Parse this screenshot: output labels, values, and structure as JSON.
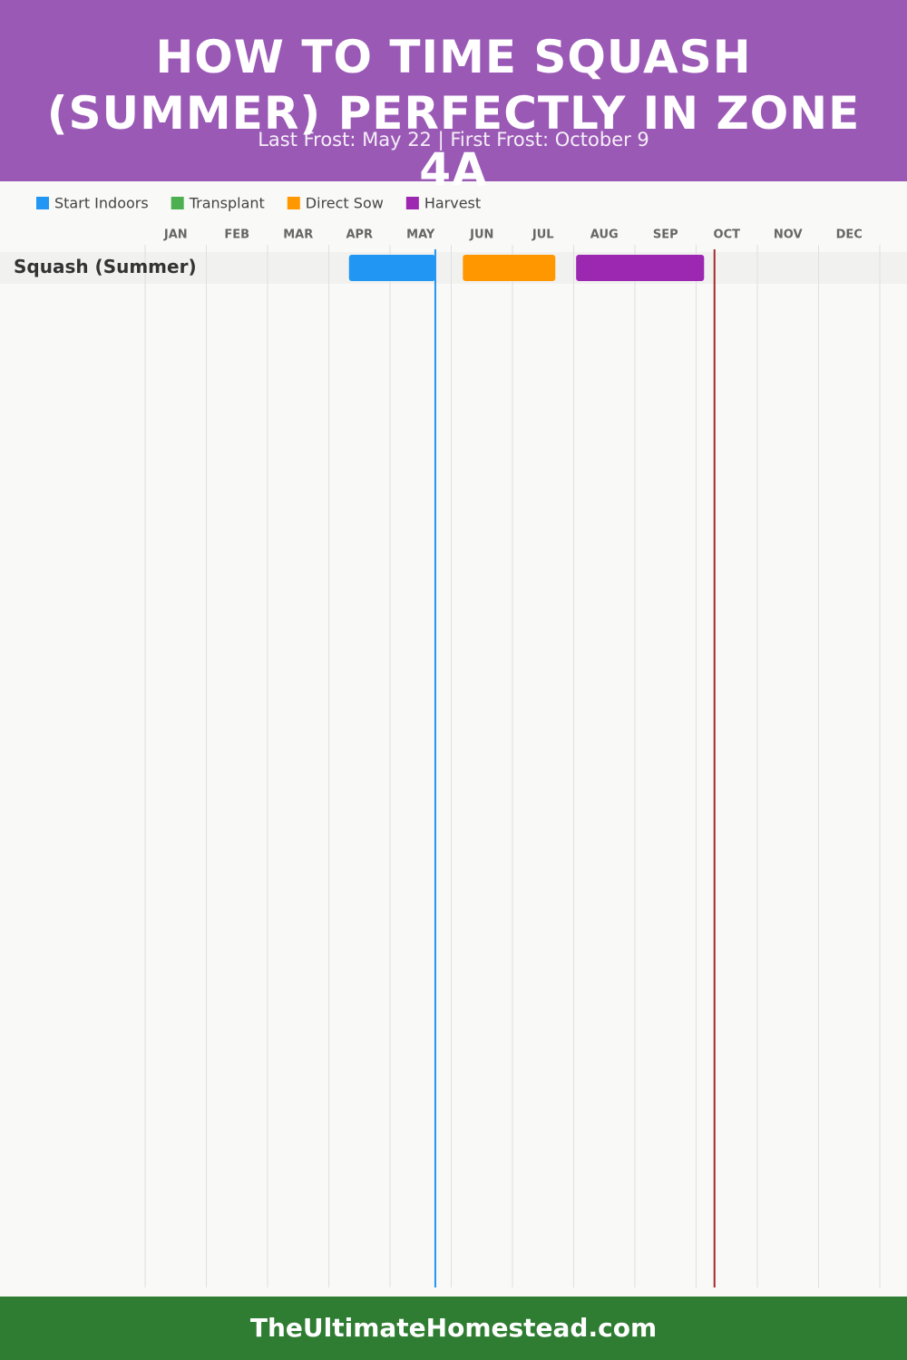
{
  "chart_data": {
    "type": "gantt",
    "title": "HOW TO TIME SQUASH (SUMMER) PERFECTLY IN ZONE 4A",
    "subtitle": "Last Frost: May 22 | First Frost: October 9",
    "categories": [
      "Squash (Summer)"
    ],
    "series": [
      {
        "name": "Start Indoors",
        "color": "#2196f3",
        "start": [
          3.33
        ],
        "end": [
          4.74
        ]
      },
      {
        "name": "Transplant",
        "color": "#4caf50",
        "start": [
          null
        ],
        "end": [
          null
        ]
      },
      {
        "name": "Direct Sow",
        "color": "#ff9800",
        "start": [
          5.19
        ],
        "end": [
          6.7
        ]
      },
      {
        "name": "Harvest",
        "color": "#9c27b0",
        "start": [
          7.04
        ],
        "end": [
          9.13
        ]
      }
    ],
    "xlim": [
      0,
      12
    ],
    "xticks": [
      {
        "value": 0,
        "label": "JAN"
      },
      {
        "value": 1,
        "label": "FEB"
      },
      {
        "value": 2,
        "label": "MAR"
      },
      {
        "value": 3,
        "label": "APR"
      },
      {
        "value": 4,
        "label": "MAY"
      },
      {
        "value": 5,
        "label": "JUN"
      },
      {
        "value": 6,
        "label": "JUL"
      },
      {
        "value": 7,
        "label": "AUG"
      },
      {
        "value": 8,
        "label": "SEP"
      },
      {
        "value": 9,
        "label": "OCT"
      },
      {
        "value": 10,
        "label": "NOV"
      },
      {
        "value": 11,
        "label": "DEC"
      }
    ],
    "grid": true,
    "reference_lines": [
      {
        "value": 4.74,
        "color": "#2196f3"
      },
      {
        "value": 9.3,
        "color": "#a52a2a"
      }
    ],
    "footer": "TheUltimateHomestead.com"
  }
}
